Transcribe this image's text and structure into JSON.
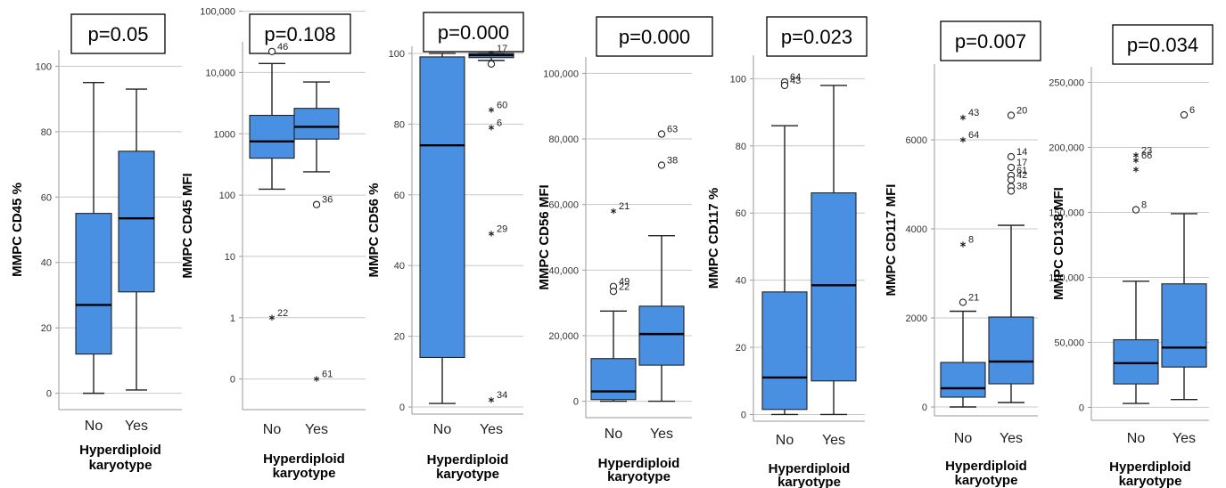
{
  "colors": {
    "box_fill": "#4a90e2",
    "box_stroke": "#222222",
    "grid": "#c8c8c8",
    "axis": "#999999"
  },
  "chart_data": [
    {
      "type": "boxplot",
      "p_value": "p=0.05",
      "ylabel": "MMPC CD45 %",
      "xlabel_lines": [
        "Hyperdiploid",
        "karyotype"
      ],
      "categories": [
        "No",
        "Yes"
      ],
      "yscale": "linear",
      "ylim": [
        -5,
        105
      ],
      "ticks": [
        0,
        20,
        40,
        60,
        80,
        100
      ],
      "tick_labels": [
        "0",
        "20",
        "40",
        "60",
        "80",
        "100"
      ],
      "boxes": [
        {
          "name": "No",
          "whisker_low": 0,
          "q1": 12,
          "median": 27,
          "q3": 55,
          "whisker_high": 95,
          "outliers": []
        },
        {
          "name": "Yes",
          "whisker_low": 1,
          "q1": 31,
          "median": 53.5,
          "q3": 74,
          "whisker_high": 93,
          "outliers": []
        }
      ]
    },
    {
      "type": "boxplot",
      "p_value": "p=0.108",
      "ylabel": "MMPC CD45 MFI",
      "xlabel_lines": [
        "Hyperdiploid",
        "karyotype"
      ],
      "categories": [
        "No",
        "Yes"
      ],
      "yscale": "symlog",
      "ylim": [
        -0.5,
        5.5
      ],
      "ticks": [
        0,
        1,
        10,
        100,
        1000,
        10000,
        100000
      ],
      "tick_labels": [
        "0",
        "1",
        "10",
        "100",
        "1000",
        "10,000",
        "100,000"
      ],
      "boxes": [
        {
          "name": "No",
          "whisker_low": 125,
          "q1": 400,
          "median": 750,
          "q3": 2000,
          "whisker_high": 14000,
          "outliers": [
            {
              "value": 22000,
              "label": "46",
              "marker": "circle"
            },
            {
              "value": 1,
              "label": "22",
              "marker": "star"
            }
          ]
        },
        {
          "name": "Yes",
          "whisker_low": 240,
          "q1": 820,
          "median": 1300,
          "q3": 2600,
          "whisker_high": 7000,
          "outliers": [
            {
              "value": 70,
              "label": "36",
              "marker": "circle"
            },
            {
              "value": 0,
              "label": "61",
              "marker": "star"
            }
          ]
        }
      ]
    },
    {
      "type": "boxplot",
      "p_value": "p=0.000",
      "ylabel": "MMPC CD56 %",
      "xlabel_lines": [
        "Hyperdiploid",
        "karyotype"
      ],
      "categories": [
        "No",
        "Yes"
      ],
      "yscale": "linear",
      "ylim": [
        -2,
        102
      ],
      "ticks": [
        0,
        20,
        40,
        60,
        80,
        100
      ],
      "tick_labels": [
        "0",
        "20",
        "40",
        "60",
        "80",
        "100"
      ],
      "boxes": [
        {
          "name": "No",
          "whisker_low": 1,
          "q1": 14,
          "median": 74,
          "q3": 99,
          "whisker_high": 100,
          "outliers": []
        },
        {
          "name": "Yes",
          "whisker_low": 98,
          "q1": 98.8,
          "median": 99.5,
          "q3": 100,
          "whisker_high": 100,
          "outliers": [
            {
              "value": 100,
              "label": "17",
              "marker": "star"
            },
            {
              "value": 97,
              "label": "",
              "marker": "circle"
            },
            {
              "value": 84,
              "label": "60",
              "marker": "star"
            },
            {
              "value": 79,
              "label": "6",
              "marker": "star"
            },
            {
              "value": 49,
              "label": "29",
              "marker": "star"
            },
            {
              "value": 2,
              "label": "34",
              "marker": "star"
            }
          ]
        }
      ]
    },
    {
      "type": "boxplot",
      "p_value": "p=0.000",
      "ylabel": "MMPC CD56 MFI",
      "xlabel_lines": [
        "Hyperdiploid",
        "karyotype"
      ],
      "categories": [
        "No",
        "Yes"
      ],
      "yscale": "linear",
      "ylim": [
        -5000,
        105000
      ],
      "ticks": [
        0,
        20000,
        40000,
        60000,
        80000,
        100000
      ],
      "tick_labels": [
        "0",
        "20,000",
        "40,000",
        "60,000",
        "80,000",
        "100,000"
      ],
      "boxes": [
        {
          "name": "No",
          "whisker_low": 0,
          "q1": 500,
          "median": 3000,
          "q3": 13000,
          "whisker_high": 27500,
          "outliers": [
            {
              "value": 58000,
              "label": "21",
              "marker": "star"
            },
            {
              "value": 35000,
              "label": "49",
              "marker": "circle"
            },
            {
              "value": 33500,
              "label": "22",
              "marker": "circle"
            }
          ]
        },
        {
          "name": "Yes",
          "whisker_low": 0,
          "q1": 11000,
          "median": 20500,
          "q3": 29000,
          "whisker_high": 50500,
          "outliers": [
            {
              "value": 81500,
              "label": "63",
              "marker": "circle"
            },
            {
              "value": 72000,
              "label": "38",
              "marker": "circle"
            }
          ]
        }
      ]
    },
    {
      "type": "boxplot",
      "p_value": "p=0.023",
      "ylabel": "MMPC CD117 %",
      "xlabel_lines": [
        "Hyperdiploid",
        "karyotype"
      ],
      "categories": [
        "No",
        "Yes"
      ],
      "yscale": "linear",
      "ylim": [
        -2,
        107
      ],
      "ticks": [
        0,
        20,
        40,
        60,
        80,
        100
      ],
      "tick_labels": [
        "0",
        "20",
        "40",
        "60",
        "80",
        "100"
      ],
      "boxes": [
        {
          "name": "No",
          "whisker_low": 0,
          "q1": 1.5,
          "median": 11,
          "q3": 36.5,
          "whisker_high": 86,
          "outliers": [
            {
              "value": 99,
              "label": "64",
              "marker": "circle"
            },
            {
              "value": 98,
              "label": "43",
              "marker": "circle"
            }
          ]
        },
        {
          "name": "Yes",
          "whisker_low": 0,
          "q1": 10,
          "median": 38.5,
          "q3": 66,
          "whisker_high": 98,
          "outliers": []
        }
      ]
    },
    {
      "type": "boxplot",
      "p_value": "p=0.007",
      "ylabel": "MMPC CD117 MFI",
      "xlabel_lines": [
        "Hyperdiploid",
        "karyotype"
      ],
      "categories": [
        "No",
        "Yes"
      ],
      "yscale": "linear",
      "ylim": [
        -200,
        7700
      ],
      "ticks": [
        0,
        2000,
        4000,
        6000
      ],
      "tick_labels": [
        "0",
        "2000",
        "4000",
        "6000"
      ],
      "boxes": [
        {
          "name": "No",
          "whisker_low": 0,
          "q1": 220,
          "median": 420,
          "q3": 1000,
          "whisker_high": 2150,
          "outliers": [
            {
              "value": 6500,
              "label": "43",
              "marker": "star"
            },
            {
              "value": 6000,
              "label": "64",
              "marker": "star"
            },
            {
              "value": 3650,
              "label": "8",
              "marker": "star"
            },
            {
              "value": 2350,
              "label": "21",
              "marker": "circle"
            }
          ]
        },
        {
          "name": "Yes",
          "whisker_low": 100,
          "q1": 520,
          "median": 1020,
          "q3": 2020,
          "whisker_high": 4080,
          "outliers": [
            {
              "value": 6550,
              "label": "20",
              "marker": "circle"
            },
            {
              "value": 5620,
              "label": "14",
              "marker": "circle"
            },
            {
              "value": 5380,
              "label": "17",
              "marker": "circle"
            },
            {
              "value": 5200,
              "label": "61",
              "marker": "circle"
            },
            {
              "value": 5100,
              "label": "42",
              "marker": "circle"
            },
            {
              "value": 4950,
              "label": "",
              "marker": "circle"
            },
            {
              "value": 4850,
              "label": "38",
              "marker": "circle"
            }
          ]
        }
      ]
    },
    {
      "type": "boxplot",
      "p_value": "p=0.034",
      "ylabel": "MMPC CD138 MFI",
      "xlabel_lines": [
        "Hyperdiploid",
        "karyotype"
      ],
      "categories": [
        "No",
        "Yes"
      ],
      "yscale": "linear",
      "ylim": [
        -10000,
        262000
      ],
      "ticks": [
        0,
        50000,
        100000,
        150000,
        200000,
        250000
      ],
      "tick_labels": [
        "0",
        "50,000",
        "100,000",
        "150,000",
        "200,000",
        "250,000"
      ],
      "boxes": [
        {
          "name": "No",
          "whisker_low": 3000,
          "q1": 18000,
          "median": 34000,
          "q3": 52000,
          "whisker_high": 97000,
          "outliers": [
            {
              "value": 194000,
              "label": "23",
              "marker": "star"
            },
            {
              "value": 190000,
              "label": "66",
              "marker": "star"
            },
            {
              "value": 183000,
              "label": "",
              "marker": "star"
            },
            {
              "value": 152000,
              "label": "8",
              "marker": "circle"
            }
          ]
        },
        {
          "name": "Yes",
          "whisker_low": 6000,
          "q1": 31000,
          "median": 46000,
          "q3": 95000,
          "whisker_high": 149000,
          "outliers": [
            {
              "value": 225000,
              "label": "6",
              "marker": "circle"
            }
          ]
        }
      ]
    }
  ]
}
